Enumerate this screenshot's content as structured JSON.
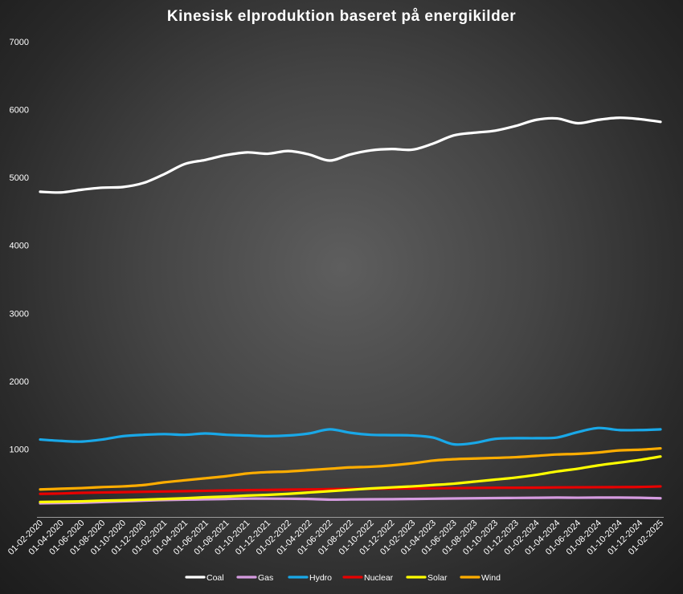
{
  "chart_data": {
    "type": "line",
    "title": "Kinesisk elproduktion baseret på energikilder",
    "xlabel": "",
    "ylabel": "",
    "ylim": [
      0,
      7000
    ],
    "yticks": [
      1000,
      2000,
      3000,
      4000,
      5000,
      6000,
      7000
    ],
    "grid": false,
    "legend_position": "bottom",
    "x_tick_labels": [
      "01-02-2020",
      "01-04-2020",
      "01-06-2020",
      "01-08-2020",
      "01-10-2020",
      "01-12-2020",
      "01-02-2021",
      "01-04-2021",
      "01-06-2021",
      "01-08-2021",
      "01-10-2021",
      "01-12-2021",
      "01-02-2022",
      "01-04-2022",
      "01-06-2022",
      "01-08-2022",
      "01-10-2022",
      "01-12-2022",
      "01-02-2023",
      "01-04-2023",
      "01-06-2023",
      "01-08-2023",
      "01-10-2023",
      "01-12-2023",
      "01-02-2024",
      "01-04-2024",
      "01-06-2024",
      "01-08-2024",
      "01-10-2024",
      "01-12-2024",
      "01-02-2025"
    ],
    "x": [
      "01-02-2020",
      "01-04-2020",
      "01-06-2020",
      "01-08-2020",
      "01-10-2020",
      "01-12-2020",
      "01-02-2021",
      "01-04-2021",
      "01-06-2021",
      "01-08-2021",
      "01-10-2021",
      "01-12-2021",
      "01-02-2022",
      "01-04-2022",
      "01-06-2022",
      "01-08-2022",
      "01-10-2022",
      "01-12-2022",
      "01-02-2023",
      "01-04-2023",
      "01-06-2023",
      "01-08-2023",
      "01-10-2023",
      "01-12-2023",
      "01-02-2024",
      "01-04-2024",
      "01-06-2024",
      "01-08-2024",
      "01-10-2024",
      "01-12-2024",
      "01-02-2025"
    ],
    "series": [
      {
        "name": "Coal",
        "color": "#ffffff",
        "values": [
          4790,
          4780,
          4820,
          4850,
          4860,
          4920,
          5050,
          5200,
          5260,
          5330,
          5370,
          5350,
          5390,
          5340,
          5250,
          5340,
          5400,
          5420,
          5410,
          5500,
          5620,
          5660,
          5690,
          5760,
          5850,
          5870,
          5800,
          5850,
          5880,
          5860,
          5820
        ]
      },
      {
        "name": "Gas",
        "color": "#d59be0",
        "values": [
          200,
          205,
          210,
          220,
          230,
          240,
          250,
          255,
          260,
          265,
          270,
          270,
          268,
          265,
          255,
          258,
          260,
          262,
          265,
          268,
          272,
          275,
          278,
          280,
          282,
          285,
          283,
          285,
          285,
          282,
          275
        ]
      },
      {
        "name": "Hydro",
        "color": "#19a8e8",
        "values": [
          1140,
          1120,
          1110,
          1140,
          1190,
          1210,
          1220,
          1210,
          1230,
          1210,
          1200,
          1190,
          1200,
          1230,
          1290,
          1240,
          1210,
          1205,
          1200,
          1170,
          1070,
          1090,
          1150,
          1160,
          1160,
          1170,
          1250,
          1310,
          1280,
          1280,
          1290
        ]
      },
      {
        "name": "Nuclear",
        "color": "#e80000",
        "values": [
          340,
          345,
          355,
          360,
          365,
          370,
          375,
          380,
          385,
          390,
          395,
          398,
          402,
          405,
          410,
          412,
          415,
          418,
          420,
          422,
          425,
          428,
          430,
          430,
          432,
          435,
          437,
          438,
          440,
          442,
          450
        ]
      },
      {
        "name": "Solar",
        "color": "#ffff00",
        "values": [
          220,
          225,
          230,
          240,
          245,
          255,
          265,
          275,
          290,
          300,
          315,
          325,
          340,
          360,
          380,
          400,
          420,
          435,
          450,
          470,
          490,
          520,
          550,
          580,
          620,
          670,
          710,
          760,
          800,
          840,
          890
        ]
      },
      {
        "name": "Wind",
        "color": "#ffad00",
        "values": [
          405,
          415,
          425,
          440,
          450,
          470,
          510,
          540,
          570,
          600,
          640,
          660,
          670,
          690,
          710,
          730,
          740,
          760,
          790,
          830,
          850,
          860,
          870,
          880,
          900,
          920,
          930,
          950,
          980,
          990,
          1010
        ]
      }
    ]
  }
}
